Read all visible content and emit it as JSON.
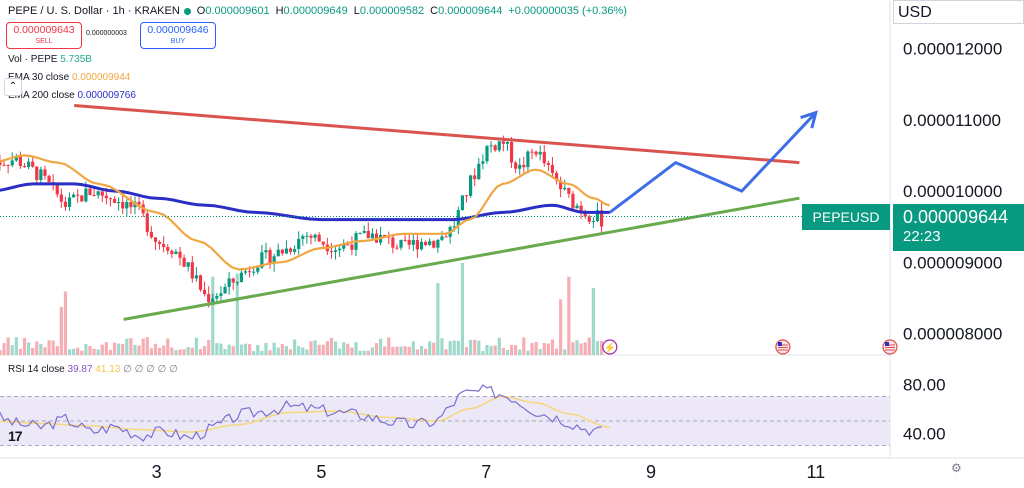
{
  "header": {
    "symbol": "PEPE / U. S. Dollar · 1h · KRAKEN",
    "o_label": "O",
    "o": "0.000009601",
    "h_label": "H",
    "h": "0.000009649",
    "l_label": "L",
    "l": "0.000009582",
    "c_label": "C",
    "c": "0.000009644",
    "change": "+0.000000035 (+0.36%)"
  },
  "trade": {
    "sell_price": "0.000009643",
    "sell_label": "SELL",
    "spread": "0.000000003",
    "buy_price": "0.000009646",
    "buy_label": "BUY"
  },
  "indicators": {
    "vol_label": "Vol · PEPE",
    "vol_value": "5.735B",
    "ema30_label": "EMA 30 close",
    "ema30_value": "0.000009944",
    "ema200_label": "EMA 200 close",
    "ema200_value": "0.000009766",
    "rsi_label": "RSI 14 close",
    "rsi_value": "39.87",
    "rsi_ma": "41.13",
    "rsi_extra": "∅ ∅ ∅ ∅ ∅",
    "collapse_glyph": "⌃"
  },
  "price_scale": {
    "currency": "USD",
    "symbol_label": "PEPEUSD",
    "last_price": "0.000009644",
    "countdown": "22:23"
  },
  "colors": {
    "up": "#089981",
    "down": "#f23645",
    "ema30": "#f0a742",
    "ema200": "#2a2ec4",
    "resistance": "#d9534f",
    "support": "#6aaa4f",
    "projection": "#3d6ee6",
    "rsi_line": "#7b6fd0",
    "rsi_ma": "#f5d87a",
    "rsi_band": "#ece8f8"
  },
  "icons": [
    "tradingview-logo-icon",
    "settings-gear-icon",
    "flash-event-icon",
    "us-flag-event-icon"
  ],
  "chart_data": {
    "type": "candlestick",
    "symbol": "PEPEUSD",
    "timeframe": "1h",
    "x_tick_labels": [
      "3",
      "5",
      "7",
      "9",
      "11"
    ],
    "price_axis": {
      "ticks": [
        1.2e-05,
        1.1e-05,
        1e-05,
        9e-06,
        8e-06
      ],
      "tick_labels": [
        "0.000012000",
        "0.000011000",
        "0.000010000",
        "0.000009000",
        "0.000008000"
      ],
      "range": [
        7.7e-06,
        1.24e-05
      ]
    },
    "rsi_axis": {
      "ticks": [
        80,
        40
      ],
      "tick_labels": [
        "80.00",
        "40.00"
      ],
      "range": [
        28,
        90
      ],
      "band": [
        30,
        70
      ],
      "mid": 50
    },
    "event_days": [
      8.5,
      10.6,
      11.9
    ],
    "price_path": [
      [
        1.0,
        1.04e-05
      ],
      [
        1.3,
        1.045e-05
      ],
      [
        1.6,
        1.02e-05
      ],
      [
        1.9,
        9.8e-06
      ],
      [
        2.2,
        1e-05
      ],
      [
        2.5,
        9.9e-06
      ],
      [
        2.8,
        9.7e-06
      ],
      [
        3.0,
        9.3e-06
      ],
      [
        3.2,
        9.2e-06
      ],
      [
        3.4,
        8.9e-06
      ],
      [
        3.6,
        8.5e-06
      ],
      [
        3.8,
        8.6e-06
      ],
      [
        4.0,
        8.8e-06
      ],
      [
        4.2,
        9e-06
      ],
      [
        4.4,
        9.1e-06
      ],
      [
        4.6,
        9.2e-06
      ],
      [
        4.8,
        9.4e-06
      ],
      [
        5.0,
        9.3e-06
      ],
      [
        5.2,
        9.2e-06
      ],
      [
        5.4,
        9.3e-06
      ],
      [
        5.6,
        9.4e-06
      ],
      [
        5.8,
        9.3e-06
      ],
      [
        6.0,
        9.2e-06
      ],
      [
        6.2,
        9.3e-06
      ],
      [
        6.4,
        9.3e-06
      ],
      [
        6.6,
        9.5e-06
      ],
      [
        6.8,
        1.01e-05
      ],
      [
        7.0,
        1.06e-05
      ],
      [
        7.2,
        1.07e-05
      ],
      [
        7.4,
        1.03e-05
      ],
      [
        7.6,
        1.06e-05
      ],
      [
        7.8,
        1.02e-05
      ],
      [
        8.0,
        9.9e-06
      ],
      [
        8.2,
        9.7e-06
      ],
      [
        8.4,
        9.6e-06
      ]
    ],
    "ema30_path": [
      [
        1.0,
        1.04e-05
      ],
      [
        1.4,
        1.05e-05
      ],
      [
        1.8,
        1.04e-05
      ],
      [
        2.3,
        1.01e-05
      ],
      [
        3.0,
        9.7e-06
      ],
      [
        3.5,
        9.3e-06
      ],
      [
        4.0,
        8.9e-06
      ],
      [
        4.5,
        9e-06
      ],
      [
        5.0,
        9.2e-06
      ],
      [
        5.5,
        9.3e-06
      ],
      [
        6.0,
        9.4e-06
      ],
      [
        6.5,
        9.4e-06
      ],
      [
        6.8,
        9.6e-06
      ],
      [
        7.2,
        1.01e-05
      ],
      [
        7.6,
        1.03e-05
      ],
      [
        8.0,
        1.01e-05
      ],
      [
        8.3,
        9.9e-06
      ],
      [
        8.5,
        9.8e-06
      ]
    ],
    "ema200_path": [
      [
        1.0,
        1e-05
      ],
      [
        1.5,
        1.01e-05
      ],
      [
        2.0,
        1.01e-05
      ],
      [
        2.5,
        1e-05
      ],
      [
        3.0,
        9.9e-06
      ],
      [
        3.6,
        9.8e-06
      ],
      [
        4.2,
        9.7e-06
      ],
      [
        5.0,
        9.6e-06
      ],
      [
        5.8,
        9.6e-06
      ],
      [
        6.6,
        9.6e-06
      ],
      [
        7.2,
        9.7e-06
      ],
      [
        7.8,
        9.8e-06
      ],
      [
        8.2,
        9.7e-06
      ],
      [
        8.5,
        9.7e-06
      ]
    ],
    "resistance_line": [
      [
        2.0,
        1.12e-05
      ],
      [
        10.8,
        1.04e-05
      ]
    ],
    "support_line": [
      [
        2.6,
        8.2e-06
      ],
      [
        10.8,
        9.9e-06
      ]
    ],
    "projection_path": [
      [
        8.5,
        9.7e-06
      ],
      [
        9.3,
        1.04e-05
      ],
      [
        10.1,
        1e-05
      ],
      [
        11.0,
        1.11e-05
      ]
    ],
    "rsi_path": [
      [
        1.0,
        55
      ],
      [
        1.3,
        48
      ],
      [
        1.6,
        45
      ],
      [
        1.9,
        52
      ],
      [
        2.2,
        41
      ],
      [
        2.5,
        46
      ],
      [
        2.8,
        38
      ],
      [
        3.1,
        42
      ],
      [
        3.4,
        36
      ],
      [
        3.7,
        45
      ],
      [
        4.0,
        55
      ],
      [
        4.3,
        58
      ],
      [
        4.6,
        62
      ],
      [
        4.9,
        60
      ],
      [
        5.2,
        57
      ],
      [
        5.5,
        55
      ],
      [
        5.8,
        50
      ],
      [
        6.1,
        47
      ],
      [
        6.4,
        50
      ],
      [
        6.7,
        72
      ],
      [
        7.0,
        75
      ],
      [
        7.3,
        70
      ],
      [
        7.6,
        58
      ],
      [
        7.9,
        52
      ],
      [
        8.2,
        44
      ],
      [
        8.5,
        40
      ]
    ],
    "rsi_ma_path": [
      [
        1.0,
        50
      ],
      [
        1.6,
        48
      ],
      [
        2.2,
        46
      ],
      [
        2.8,
        43
      ],
      [
        3.4,
        41
      ],
      [
        4.0,
        47
      ],
      [
        4.6,
        57
      ],
      [
        5.2,
        58
      ],
      [
        5.8,
        53
      ],
      [
        6.4,
        50
      ],
      [
        6.8,
        60
      ],
      [
        7.2,
        70
      ],
      [
        7.6,
        65
      ],
      [
        8.0,
        56
      ],
      [
        8.5,
        45
      ]
    ]
  }
}
